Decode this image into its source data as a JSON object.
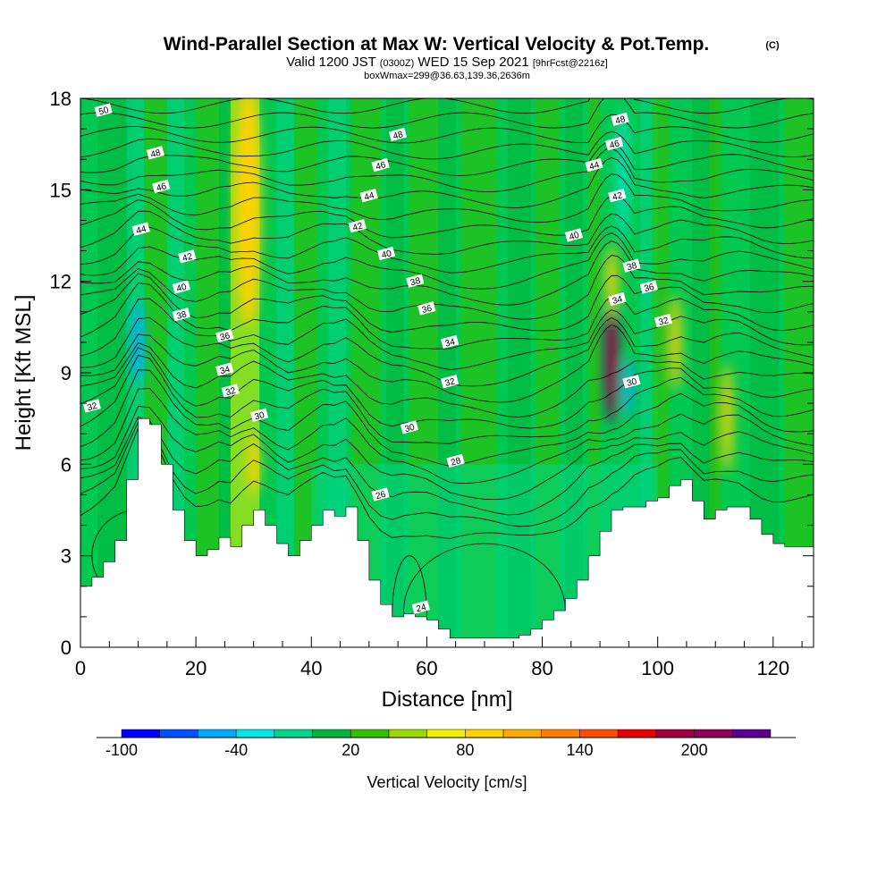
{
  "chart_data": {
    "type": "heatmap",
    "title": "Wind-Parallel Section at Max W: Vertical Velocity & Pot.Temp.",
    "title_mark": "(C)",
    "subtitle_parts": [
      "Valid 1200 JST",
      "(0300Z)",
      "WED 15 Sep 2021",
      "[9hrFcst@2216z]"
    ],
    "subtitle2": "boxWmax=299@36.63,139.36,2636m",
    "xlabel": "Distance [nm]",
    "ylabel": "Height [Kft MSL]",
    "xlim": [
      0,
      127
    ],
    "ylim": [
      0,
      18
    ],
    "x_ticks": [
      0,
      20,
      40,
      60,
      80,
      100,
      120
    ],
    "y_ticks": [
      0,
      3,
      6,
      9,
      12,
      15,
      18
    ],
    "colorbar": {
      "label": "Vertical Velocity [cm/s]",
      "ticks": [
        -100,
        -40,
        20,
        80,
        140,
        200
      ],
      "levels": [
        -100,
        -80,
        -60,
        -40,
        -20,
        0,
        20,
        40,
        60,
        80,
        100,
        120,
        140,
        160,
        180,
        200,
        220,
        240
      ],
      "colors": [
        "#0000ff",
        "#0050ff",
        "#00aaff",
        "#00e8e8",
        "#00d58c",
        "#00b43c",
        "#35c000",
        "#9ad800",
        "#f0f000",
        "#ffd200",
        "#ffab00",
        "#ff8000",
        "#ff4c00",
        "#e80000",
        "#a00040",
        "#8c005a",
        "#5a0090"
      ]
    },
    "terrain_profile": {
      "x": [
        0,
        2,
        4,
        6,
        8,
        10,
        12,
        14,
        16,
        18,
        20,
        22,
        24,
        26,
        28,
        30,
        32,
        34,
        36,
        38,
        40,
        42,
        44,
        46,
        48,
        50,
        52,
        54,
        56,
        58,
        60,
        62,
        64,
        66,
        68,
        70,
        72,
        74,
        76,
        78,
        80,
        82,
        84,
        86,
        88,
        90,
        92,
        94,
        96,
        98,
        100,
        102,
        104,
        106,
        108,
        110,
        112,
        114,
        116,
        118,
        120,
        122,
        124,
        127
      ],
      "y": [
        2.0,
        2.3,
        2.8,
        3.5,
        5.5,
        7.5,
        7.3,
        6.0,
        4.5,
        3.5,
        3.0,
        3.2,
        3.6,
        3.3,
        4.0,
        4.5,
        4.0,
        3.4,
        3.0,
        3.5,
        4.0,
        4.5,
        4.3,
        4.6,
        3.5,
        2.2,
        1.4,
        1.0,
        1.1,
        1.0,
        0.9,
        0.6,
        0.3,
        0.3,
        0.3,
        0.3,
        0.3,
        0.3,
        0.4,
        0.6,
        0.9,
        1.2,
        1.6,
        2.2,
        3.0,
        3.8,
        4.5,
        4.6,
        4.6,
        4.8,
        4.9,
        5.3,
        5.5,
        4.8,
        4.2,
        4.5,
        4.6,
        4.6,
        4.2,
        3.7,
        3.4,
        3.3,
        3.3,
        3.3
      ]
    },
    "velocity_features": [
      {
        "x": 29,
        "y": 14.5,
        "value": 80
      },
      {
        "x": 30,
        "y": 6.0,
        "value": 80
      },
      {
        "x": 10,
        "y": 10.0,
        "value": -60
      },
      {
        "x": 92,
        "y": 9.5,
        "value": 200
      },
      {
        "x": 92,
        "y": 12.0,
        "value": 80
      },
      {
        "x": 103,
        "y": 10.0,
        "value": 80
      },
      {
        "x": 112,
        "y": 7.5,
        "value": 80
      },
      {
        "x": 94,
        "y": 15.5,
        "value": -40
      },
      {
        "x": 95,
        "y": 8.5,
        "value": -60
      }
    ],
    "theta_contour_labels": [
      {
        "text": "50",
        "x": 4,
        "y": 17.6
      },
      {
        "text": "48",
        "x": 13,
        "y": 16.2
      },
      {
        "text": "46",
        "x": 14,
        "y": 15.1
      },
      {
        "text": "44",
        "x": 10.5,
        "y": 13.7
      },
      {
        "text": "42",
        "x": 18.5,
        "y": 12.8
      },
      {
        "text": "40",
        "x": 17.5,
        "y": 11.8
      },
      {
        "text": "38",
        "x": 17.5,
        "y": 10.9
      },
      {
        "text": "36",
        "x": 25,
        "y": 10.2
      },
      {
        "text": "34",
        "x": 25,
        "y": 9.1
      },
      {
        "text": "32",
        "x": 26,
        "y": 8.4
      },
      {
        "text": "32",
        "x": 2,
        "y": 7.9
      },
      {
        "text": "30",
        "x": 31,
        "y": 7.6
      },
      {
        "text": "48",
        "x": 55,
        "y": 16.8
      },
      {
        "text": "46",
        "x": 52,
        "y": 15.8
      },
      {
        "text": "44",
        "x": 50,
        "y": 14.8
      },
      {
        "text": "42",
        "x": 48,
        "y": 13.8
      },
      {
        "text": "40",
        "x": 53,
        "y": 12.9
      },
      {
        "text": "38",
        "x": 58,
        "y": 12.0
      },
      {
        "text": "36",
        "x": 60,
        "y": 11.1
      },
      {
        "text": "34",
        "x": 64,
        "y": 10.0
      },
      {
        "text": "32",
        "x": 64,
        "y": 8.7
      },
      {
        "text": "30",
        "x": 57,
        "y": 7.2
      },
      {
        "text": "28",
        "x": 65,
        "y": 6.1
      },
      {
        "text": "26",
        "x": 52,
        "y": 5.0
      },
      {
        "text": "24",
        "x": 59,
        "y": 1.3
      },
      {
        "text": "48",
        "x": 93.5,
        "y": 17.3
      },
      {
        "text": "46",
        "x": 92.5,
        "y": 16.5
      },
      {
        "text": "44",
        "x": 89,
        "y": 15.8
      },
      {
        "text": "42",
        "x": 93,
        "y": 14.8
      },
      {
        "text": "40",
        "x": 85.5,
        "y": 13.5
      },
      {
        "text": "38",
        "x": 95.5,
        "y": 12.5
      },
      {
        "text": "36",
        "x": 98.5,
        "y": 11.8
      },
      {
        "text": "34",
        "x": 93,
        "y": 11.4
      },
      {
        "text": "32",
        "x": 101,
        "y": 10.7
      },
      {
        "text": "30",
        "x": 95.5,
        "y": 8.7
      }
    ]
  }
}
